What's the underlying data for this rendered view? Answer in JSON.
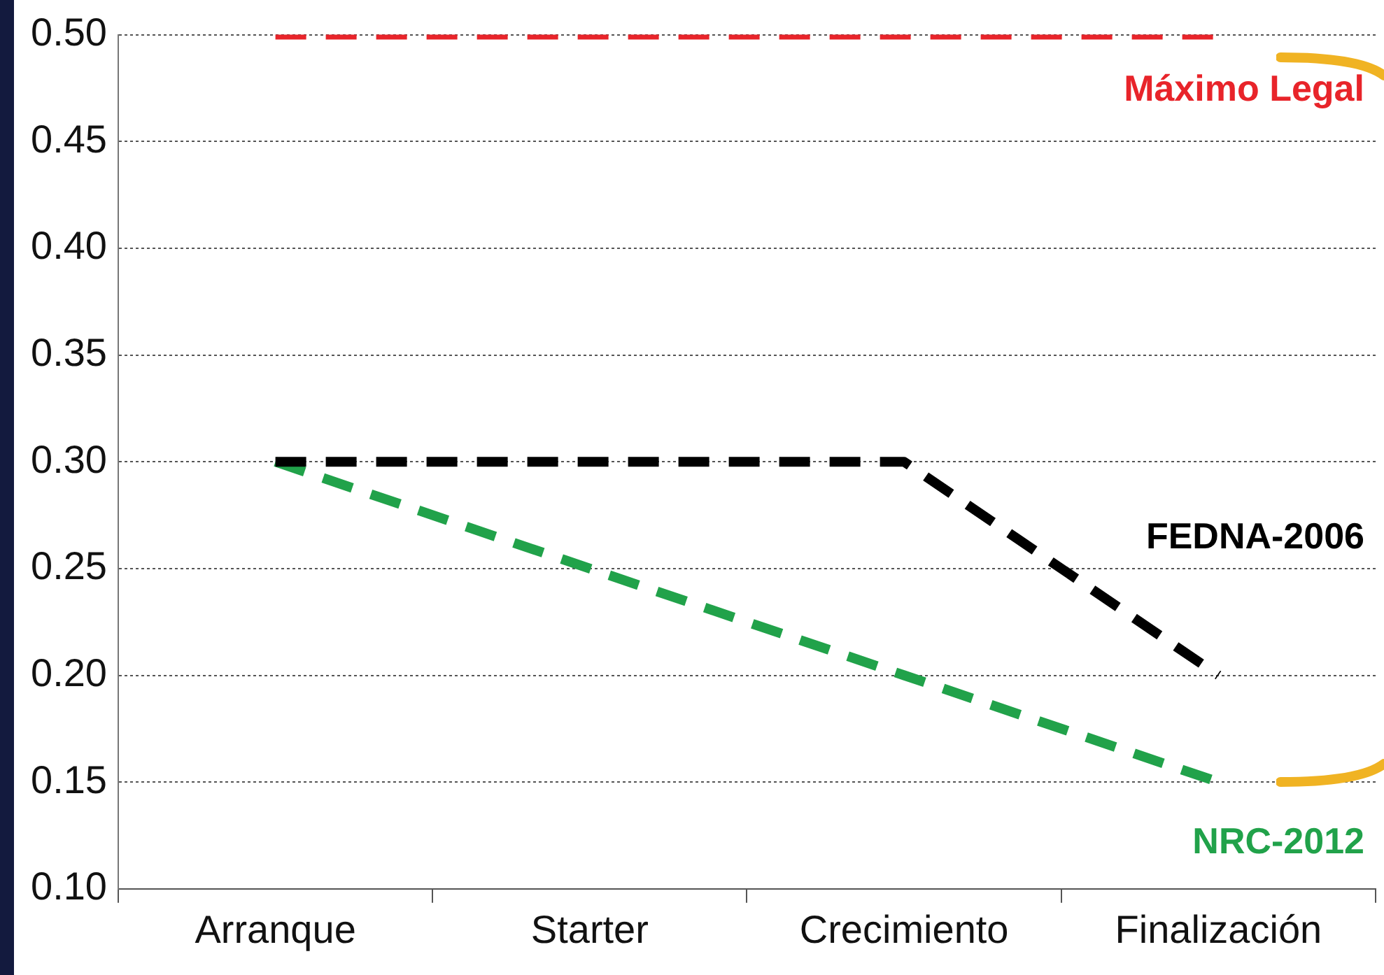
{
  "chart_data": {
    "type": "line",
    "categories": [
      "Arranque",
      "Starter",
      "Crecimiento",
      "Finalización"
    ],
    "series": [
      {
        "name": "Máximo Legal",
        "color": "#e8242a",
        "values": [
          0.5,
          0.5,
          0.5,
          0.5
        ]
      },
      {
        "name": "FEDNA-2006",
        "color": "#000000",
        "values": [
          0.3,
          0.3,
          0.3,
          0.2
        ]
      },
      {
        "name": "NRC-2012",
        "color": "#21a24a",
        "values": [
          0.3,
          0.25,
          0.2,
          0.15
        ]
      }
    ],
    "ylim": [
      0.1,
      0.5
    ],
    "yticks": [
      {
        "value": 0.1,
        "label": "0.10"
      },
      {
        "value": 0.15,
        "label": "0.15"
      },
      {
        "value": 0.2,
        "label": "0.20"
      },
      {
        "value": 0.25,
        "label": "0.25"
      },
      {
        "value": 0.3,
        "label": "0.30"
      },
      {
        "value": 0.35,
        "label": "0.35"
      },
      {
        "value": 0.4,
        "label": "0.40"
      },
      {
        "value": 0.45,
        "label": "0.45"
      },
      {
        "value": 0.5,
        "label": "0.50"
      }
    ],
    "grid": "y",
    "legend": false,
    "marker": "none",
    "line_style": "dashed"
  }
}
